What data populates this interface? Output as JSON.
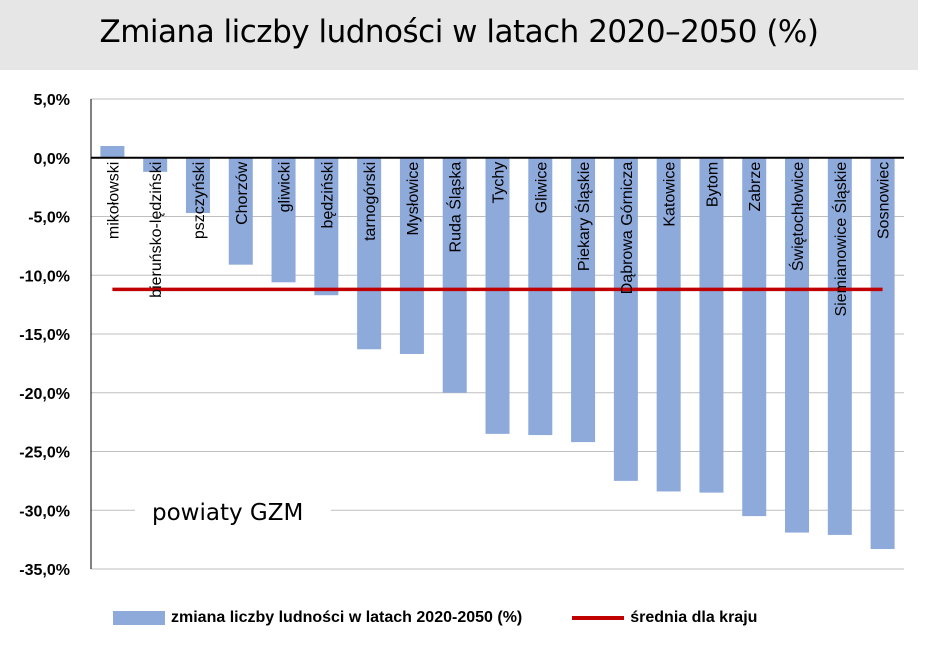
{
  "chart_data": {
    "type": "bar",
    "title": "Zmiana liczby ludności w latach 2020–2050 (%)",
    "annotation": "powiaty GZM",
    "categories": [
      "mikołowski",
      "bieruńsko-lędziński",
      "pszczyński",
      "Chorzów",
      "gliwicki",
      "będziński",
      "tarnogórski",
      "Mysłowice",
      "Ruda Śląska",
      "Tychy",
      "Gliwice",
      "Piekary Śląskie",
      "Dąbrowa Górnicza",
      "Katowice",
      "Bytom",
      "Zabrze",
      "Świętochłowice",
      "Siemianowice Śląskie",
      "Sosnowiec"
    ],
    "series": [
      {
        "name": "zmiana liczby ludności w latach 2020-2050 (%)",
        "values": [
          1.0,
          -1.2,
          -4.7,
          -9.1,
          -10.6,
          -11.7,
          -16.3,
          -16.7,
          -20.0,
          -23.5,
          -23.6,
          -24.2,
          -27.5,
          -28.4,
          -28.5,
          -30.5,
          -31.9,
          -32.1,
          -33.3
        ]
      }
    ],
    "reference_line": {
      "name": "średnia dla kraju",
      "value": -11.2
    },
    "y_ticks": [
      "5,0%",
      "0,0%",
      "-5,0%",
      "-10,0%",
      "-15,0%",
      "-20,0%",
      "-25,0%",
      "-30,0%",
      "-35,0%"
    ],
    "ylim": [
      -35,
      5
    ],
    "grid": true,
    "legend_position": "bottom",
    "colors": {
      "bar": "#8eaadb",
      "reference_line": "#c00000",
      "grid": "#bfbfbf",
      "title_band": "#e6e6e6"
    }
  },
  "legend": {
    "bar_label": "zmiana liczby ludności w latach 2020-2050 (%)",
    "line_label": "średnia dla kraju"
  }
}
